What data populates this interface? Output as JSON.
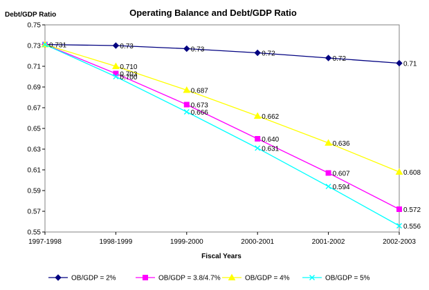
{
  "chart_data": {
    "type": "line",
    "title": "Operating Balance and Debt/GDP Ratio",
    "xlabel": "Fiscal Years",
    "ylabel": "Debt/GDP Ratio",
    "categories": [
      "1997-1998",
      "1998-1999",
      "1999-2000",
      "2000-2001",
      "2001-2002",
      "2002-2003"
    ],
    "ylim": [
      0.55,
      0.75
    ],
    "yticks": [
      "0.55",
      "0.57",
      "0.59",
      "0.61",
      "0.63",
      "0.65",
      "0.67",
      "0.69",
      "0.71",
      "0.73",
      "0.75"
    ],
    "grid": false,
    "legend_position": "bottom",
    "series": [
      {
        "name": "OB/GDP = 2%",
        "color": "#000080",
        "marker": "diamond",
        "values": [
          0.731,
          0.73,
          0.727,
          0.723,
          0.718,
          0.713
        ],
        "labels": [
          "0.731",
          "0.73",
          "0.73",
          "0.72",
          "0.72",
          "0.71"
        ]
      },
      {
        "name": "OB/GDP = 3.8/4.7%",
        "color": "#ff00ff",
        "marker": "square",
        "values": [
          0.731,
          0.703,
          0.673,
          0.64,
          0.607,
          0.572
        ],
        "labels": [
          "",
          "0.703",
          "0.673",
          "0.640",
          "0.607",
          "0.572"
        ]
      },
      {
        "name": "OB/GDP = 4%",
        "color": "#ffff00",
        "marker": "triangle",
        "values": [
          0.731,
          0.71,
          0.687,
          0.662,
          0.636,
          0.608
        ],
        "labels": [
          "",
          "0.710",
          "0.687",
          "0.662",
          "0.636",
          "0.608"
        ]
      },
      {
        "name": "OB/GDP = 5%",
        "color": "#00ffff",
        "marker": "x",
        "values": [
          0.731,
          0.7,
          0.666,
          0.631,
          0.594,
          0.556
        ],
        "labels": [
          "",
          "0.700",
          "0.666",
          "0.631",
          "0.594",
          "0.556"
        ]
      }
    ]
  }
}
